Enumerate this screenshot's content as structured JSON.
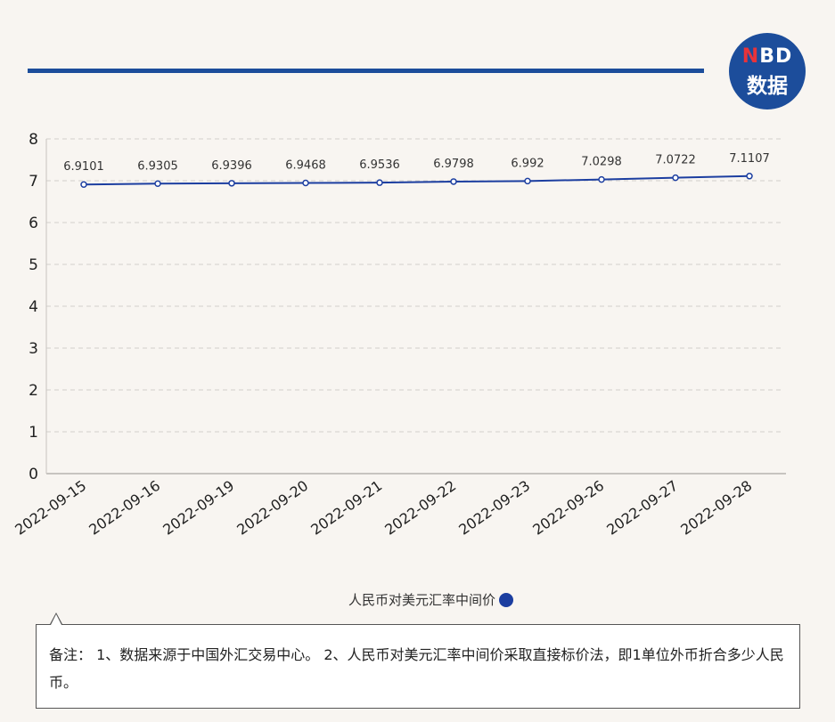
{
  "logo": {
    "line1_n": "N",
    "line1_rest": "BD",
    "line2": "数据"
  },
  "chart_data": {
    "type": "line",
    "categories": [
      "2022-09-15",
      "2022-09-16",
      "2022-09-19",
      "2022-09-20",
      "2022-09-21",
      "2022-09-22",
      "2022-09-23",
      "2022-09-26",
      "2022-09-27",
      "2022-09-28"
    ],
    "series": [
      {
        "name": "人民币对美元汇率中间价",
        "values": [
          6.9101,
          6.9305,
          6.9396,
          6.9468,
          6.9536,
          6.9798,
          6.992,
          7.0298,
          7.0722,
          7.1107
        ]
      }
    ],
    "data_labels": [
      "6.9101",
      "6.9305",
      "6.9396",
      "6.9468",
      "6.9536",
      "6.9798",
      "6.992",
      "7.0298",
      "7.0722",
      "7.1107"
    ],
    "ylim": [
      0,
      8
    ],
    "yticks": [
      "0",
      "1",
      "2",
      "3",
      "4",
      "5",
      "6",
      "7",
      "8"
    ],
    "grid": true,
    "legend_position": "bottom-center",
    "colors": {
      "line": "#1c3ea0",
      "rule": "#1c4d9b"
    }
  },
  "legend": {
    "label": "人民币对美元汇率中间价"
  },
  "note": {
    "text": "备注： 1、数据来源于中国外汇交易中心。 2、人民币对美元汇率中间价采取直接标价法，即1单位外币折合多少人民币。"
  }
}
